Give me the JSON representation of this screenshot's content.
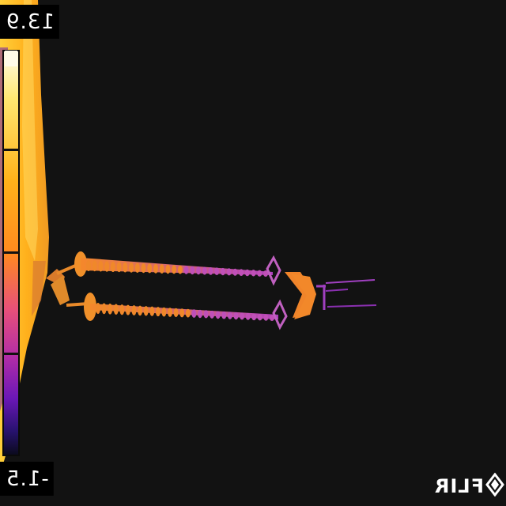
{
  "temperature_scale": {
    "max": "13.9",
    "min": "-1.5",
    "palette": [
      "#fffbe8",
      "#ffe870",
      "#ffb21a",
      "#ff8a1f",
      "#e9507a",
      "#b02ca8",
      "#6a17b5",
      "#27126e",
      "#0a0a1a"
    ]
  },
  "brand": {
    "logo": "FLIR"
  },
  "colors": {
    "background": "#121212",
    "hot": "#ffb21a",
    "warm": "#f58a2a",
    "cool": "#a040c0"
  }
}
